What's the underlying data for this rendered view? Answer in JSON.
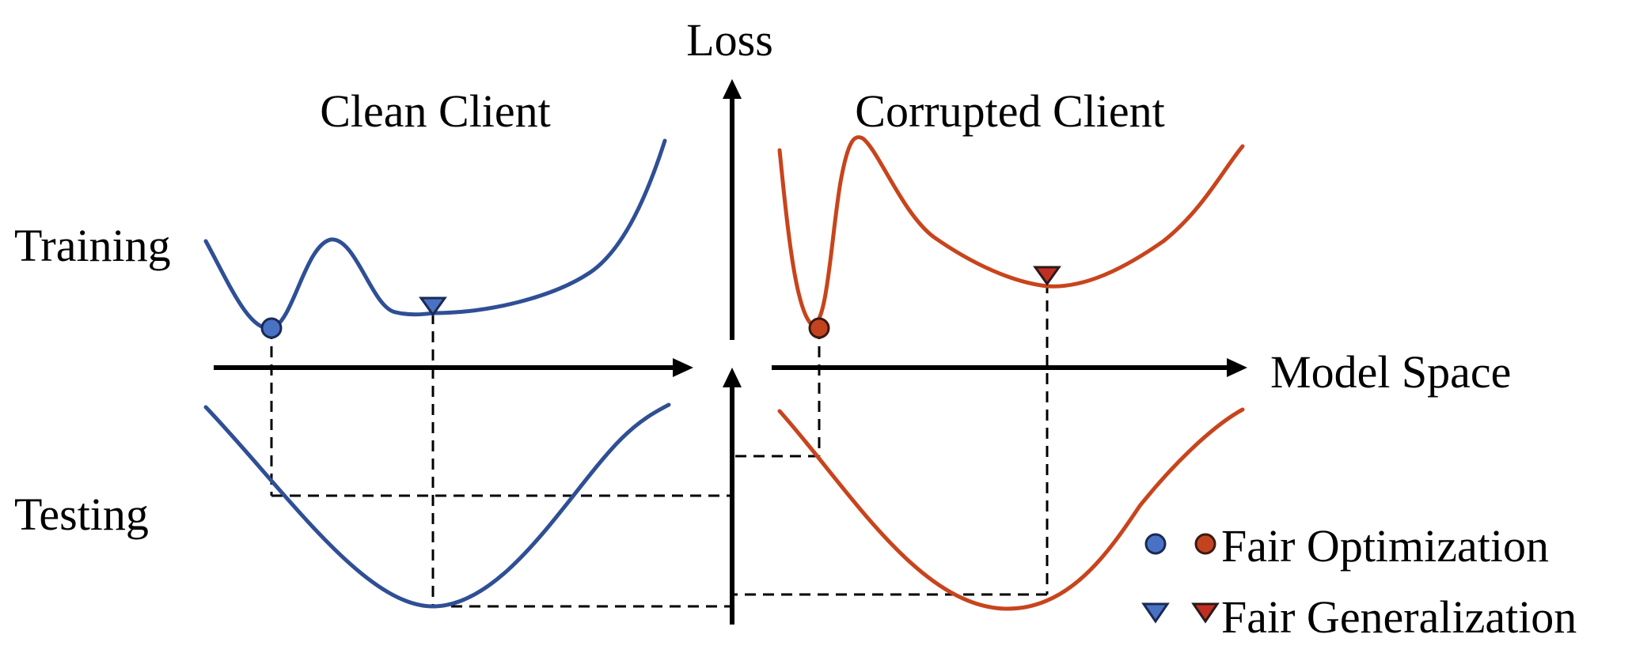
{
  "labels": {
    "loss_axis": "Loss",
    "model_space_axis": "Model Space",
    "clean_client": "Clean Client",
    "corrupted_client": "Corrupted Client",
    "training": "Training",
    "testing": "Testing"
  },
  "legend": {
    "fair_optimization": "Fair Optimization",
    "fair_generalization": "Fair Generalization"
  },
  "colors": {
    "clean_curve": "#2f4f95",
    "corrupted_curve": "#c8441c",
    "clean_marker": "#4a72c4",
    "corrupted_marker": "#c4431f",
    "fair_generalization_clean": "#4a72c4",
    "fair_generalization_corrupted": "#c32e22"
  }
}
